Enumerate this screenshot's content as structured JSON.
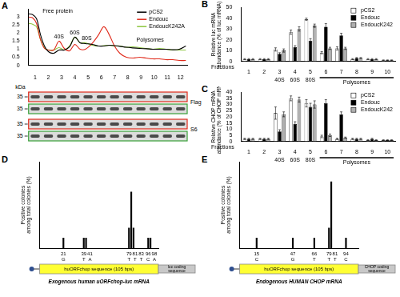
{
  "chart_data": [
    {
      "type": "line",
      "title": "A",
      "x": [
        0,
        0.3,
        0.6,
        0.9,
        1.2,
        1.5,
        1.9,
        2.3,
        2.7,
        3.1,
        3.5,
        3.9,
        4.3,
        4.8,
        5.3,
        5.7,
        6.1,
        6.5,
        6.9,
        7.4,
        7.9,
        8.4,
        8.9,
        9.4,
        9.9,
        10.4,
        10.9,
        11.4,
        11.9
      ],
      "series": [
        {
          "name": "pCS2",
          "color": "#000000",
          "values": [
            3.2,
            3.15,
            2.9,
            1.9,
            1.2,
            0.85,
            0.75,
            0.95,
            0.95,
            1.15,
            1.75,
            1.4,
            1.35,
            1.3,
            1.2,
            1.2,
            1.25,
            1.22,
            1.18,
            1.12,
            1.08,
            1.05,
            1.03,
            1.0,
            1.0,
            1.0,
            0.97,
            1.0,
            1.2
          ]
        },
        {
          "name": "Endouc",
          "color": "#e02a1b",
          "values": [
            3.0,
            2.95,
            2.6,
            1.6,
            1.05,
            0.95,
            0.95,
            1.5,
            1.05,
            0.9,
            1.3,
            1.0,
            1.0,
            1.35,
            1.9,
            2.4,
            1.9,
            1.2,
            0.75,
            0.5,
            0.45,
            0.5,
            0.45,
            0.4,
            0.4,
            0.35,
            0.35,
            0.3,
            0.3
          ]
        },
        {
          "name": "EndoucK242A",
          "color": "#8cc63f",
          "values": [
            2.6,
            2.55,
            2.4,
            1.6,
            1.1,
            0.95,
            0.95,
            1.1,
            0.95,
            1.2,
            1.75,
            1.4,
            1.4,
            1.25,
            1.2,
            1.22,
            1.25,
            1.2,
            1.2,
            1.12,
            1.15,
            1.1,
            1.05,
            1.0,
            1.05,
            1.0,
            0.95,
            0.95,
            0.95
          ]
        }
      ],
      "xlim": [
        0,
        12
      ],
      "xticks": [
        {
          "value": 0.5,
          "label": "1"
        },
        {
          "value": 1.5,
          "label": "2"
        },
        {
          "value": 2.5,
          "label": "3"
        },
        {
          "value": 3.5,
          "label": "4"
        },
        {
          "value": 4.5,
          "label": "5"
        },
        {
          "value": 5.5,
          "label": "6"
        },
        {
          "value": 6.5,
          "label": "7"
        },
        {
          "value": 7.5,
          "label": "8"
        },
        {
          "value": 8.5,
          "label": "9"
        },
        {
          "value": 9.5,
          "label": "10"
        },
        {
          "value": 10.5,
          "label": "11"
        },
        {
          "value": 11.5,
          "label": "12"
        }
      ],
      "ylim": [
        0,
        3.5
      ],
      "yticks": [
        0,
        0.5,
        1,
        1.5,
        2,
        2.5,
        3
      ],
      "grid": false,
      "legend": "upper right",
      "annotations": [
        {
          "text": "Free protein",
          "x": 2.2,
          "y": 3.2
        },
        {
          "text": "40S",
          "x": 2.3,
          "y": 1.6
        },
        {
          "text": "60S",
          "x": 3.5,
          "y": 1.85
        },
        {
          "text": "80S",
          "x": 4.4,
          "y": 1.5
        },
        {
          "text": "Polysomes",
          "x": 9.2,
          "y": 1.4
        }
      ],
      "blots": {
        "unit": "kDa",
        "groups": [
          {
            "label": "Flag",
            "rows": [
              {
                "marker": 35,
                "color": "#e02a1b"
              },
              {
                "marker": 35,
                "color": "#3aa03a"
              }
            ]
          },
          {
            "label": "S6",
            "rows": [
              {
                "marker": 35,
                "color": "#e02a1b"
              },
              {
                "marker": 35,
                "color": "#3aa03a"
              }
            ]
          }
        ]
      }
    },
    {
      "type": "bar",
      "title": "B",
      "categories": [
        "1",
        "2",
        "3",
        "4",
        "5",
        "6",
        "7",
        "8",
        "9",
        "10"
      ],
      "x_label": "Fractions",
      "y_label": [
        "Relative luc mRNA",
        "abundance (% of luc mRNA)"
      ],
      "series": [
        {
          "name": "pCS2",
          "color": "#ffffff",
          "values": [
            2,
            2,
            11,
            27,
            39,
            8,
            12,
            2,
            2,
            1
          ],
          "errors": [
            0.5,
            0.5,
            1.5,
            2,
            1,
            1,
            1.5,
            0.5,
            0.5,
            0.3
          ]
        },
        {
          "name": "Endouc",
          "color": "#000000",
          "values": [
            2,
            2,
            7,
            13,
            19,
            32,
            24,
            3,
            2,
            1
          ],
          "errors": [
            0.5,
            0.5,
            1,
            1.5,
            2,
            3,
            2,
            0.5,
            0.5,
            0.3
          ]
        },
        {
          "name": "EndoucK242",
          "color": "#b0b0b0",
          "values": [
            2,
            2,
            10,
            30,
            33,
            12,
            12,
            3,
            2,
            1
          ],
          "errors": [
            0.5,
            0.5,
            1.5,
            2,
            1.5,
            1,
            1,
            0.5,
            0.5,
            0.3
          ]
        }
      ],
      "ylim": [
        0,
        50
      ],
      "yticks": [
        0,
        10,
        20,
        30,
        40,
        50
      ],
      "grid": false,
      "legend": "upper right",
      "regions": [
        {
          "label": "40S",
          "from": "3",
          "to": "3"
        },
        {
          "label": "60S",
          "from": "4",
          "to": "4"
        },
        {
          "label": "80S",
          "from": "5",
          "to": "5"
        },
        {
          "label": "Polysomes",
          "from": "6",
          "to": "10"
        }
      ]
    },
    {
      "type": "bar",
      "title": "C",
      "categories": [
        "1",
        "2",
        "3",
        "4",
        "5",
        "6",
        "7",
        "8",
        "9",
        "10"
      ],
      "x_label": "Fractions",
      "y_label": [
        "Relative CHOP mRNA",
        "abundance (% of CHOP mRNA)"
      ],
      "series": [
        {
          "name": "pCS2",
          "color": "#ffffff",
          "values": [
            2,
            2,
            23,
            35,
            31,
            4,
            2,
            2,
            1,
            1
          ],
          "errors": [
            0.5,
            0.5,
            5,
            2,
            3,
            1,
            0.5,
            0.5,
            0.3,
            0.3
          ]
        },
        {
          "name": "Endouc",
          "color": "#000000",
          "values": [
            2,
            2,
            8,
            14,
            28,
            31,
            22,
            2,
            2,
            1
          ],
          "errors": [
            0.5,
            0.5,
            1.5,
            2,
            3,
            3,
            2,
            0.5,
            0.5,
            0.3
          ]
        },
        {
          "name": "EndoucK242",
          "color": "#b0b0b0",
          "values": [
            2,
            2,
            22,
            34,
            30,
            5,
            3,
            2,
            1,
            1
          ],
          "errors": [
            0.5,
            0.5,
            2,
            2,
            3,
            1,
            0.5,
            0.5,
            0.3,
            0.3
          ]
        }
      ],
      "ylim": [
        0,
        40
      ],
      "yticks": [
        0,
        5,
        10,
        15,
        20,
        25,
        30,
        35,
        40
      ],
      "grid": false,
      "legend": "upper right",
      "regions": [
        {
          "label": "40S",
          "from": "3",
          "to": "3"
        },
        {
          "label": "60S",
          "from": "4",
          "to": "4"
        },
        {
          "label": "80S",
          "from": "5",
          "to": "5"
        },
        {
          "label": "Polysomes",
          "from": "6",
          "to": "10"
        }
      ]
    },
    {
      "type": "bar",
      "title": "D",
      "x": [
        21,
        39,
        41,
        79,
        81,
        83,
        96,
        98
      ],
      "bases": [
        "G",
        "T",
        "A",
        "T",
        "T",
        "T",
        "C",
        "A"
      ],
      "values": [
        7,
        7,
        7,
        14,
        39,
        14,
        7,
        7
      ],
      "color": "#000000",
      "xlim": [
        0,
        105
      ],
      "ylim": [
        0,
        60
      ],
      "grid": false,
      "tick_labels": false,
      "y_label": [
        "Positive colonies",
        "among total colonies (%)"
      ],
      "sequence_label": "huORFchop sequence (105 bps)",
      "coding_label": [
        "luc coding",
        "sequence"
      ],
      "caption": "Exogenous human uORFchop-luc mRNA"
    },
    {
      "type": "bar",
      "title": "E",
      "x": [
        15,
        47,
        66,
        79,
        81,
        94
      ],
      "bases": [
        "C",
        "G",
        "T",
        "T",
        "T",
        "C"
      ],
      "values": [
        7,
        7,
        7,
        14,
        46,
        7
      ],
      "color": "#000000",
      "xlim": [
        0,
        105
      ],
      "ylim": [
        0,
        60
      ],
      "grid": false,
      "tick_labels": false,
      "y_label": [
        "Positive colonies",
        "among total colonies (%)"
      ],
      "sequence_label": "huORFchop sequence (105 bps)",
      "coding_label": [
        "CHOP coding",
        "sequence"
      ],
      "caption": "Endogenous HUMAN CHOP mRNA"
    }
  ]
}
